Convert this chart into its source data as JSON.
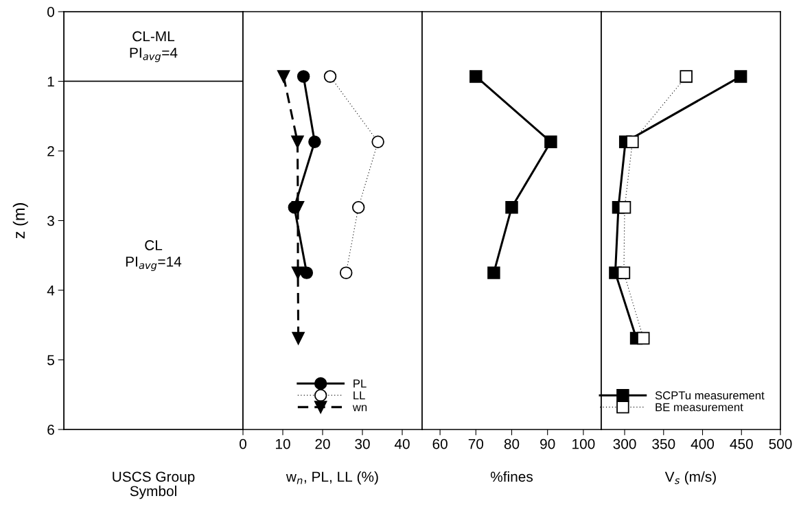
{
  "chart_data": [
    {
      "type": "bar",
      "stacked": true,
      "categories": [
        null
      ],
      "xlabel": "USCS Group\nSymbol",
      "ylabel": "z (m)",
      "ylim": [
        6,
        0
      ],
      "yticks": [
        0,
        1,
        2,
        3,
        4,
        5,
        6
      ],
      "tick_labels": "y",
      "series": [
        {
          "name": "CL-ML\nPI$_{avg}$=4",
          "color": "#ffffff",
          "values": [
            1
          ]
        },
        {
          "name": "CL\nPI$_{avg}$=14",
          "color": "#ffffff",
          "values": [
            5
          ]
        }
      ]
    },
    {
      "type": "line",
      "orientation": "horizontal",
      "xlabel": "w$_{n}$, PL, LL (%)",
      "xlim": [
        0,
        45
      ],
      "xticks": [
        0,
        10,
        20,
        30,
        40
      ],
      "ylim": [
        6,
        0
      ],
      "tick_labels": "x",
      "legend": "bottom",
      "series": [
        {
          "name": "PL",
          "color": "#000000",
          "marker": "circle",
          "line_style": "solid",
          "x": [
            0.93,
            1.87,
            2.81,
            3.75
          ],
          "values": [
            15.2,
            18,
            12.9,
            16
          ]
        },
        {
          "name": "LL",
          "color": "#ffffff",
          "marker": "circle",
          "line_style": "dotted",
          "x": [
            0.93,
            1.87,
            2.81,
            3.75
          ],
          "values": [
            21.9,
            33.9,
            29,
            25.9
          ]
        },
        {
          "name": "wn",
          "color": "#000000",
          "marker": "triangle",
          "line_style": "dashed",
          "x": [
            0.93,
            1.87,
            2.81,
            3.75,
            4.69
          ],
          "values": [
            10.2,
            13.7,
            13.8,
            13.8,
            13.9
          ]
        }
      ]
    },
    {
      "type": "line",
      "orientation": "horizontal",
      "xlabel": "%fines",
      "xlim": [
        55,
        105
      ],
      "xticks": [
        60,
        70,
        80,
        90,
        100
      ],
      "ylim": [
        6,
        0
      ],
      "tick_labels": "x",
      "series": [
        {
          "color": "#000000",
          "marker": "square",
          "line_style": "solid",
          "x": [
            0.93,
            1.87,
            2.81,
            3.75
          ],
          "values": [
            70,
            90.9,
            80,
            75
          ]
        }
      ]
    },
    {
      "type": "line",
      "orientation": "horizontal",
      "xlabel": "V$_{s}$ (m/s)",
      "xlim": [
        270,
        500
      ],
      "xticks": [
        300,
        350,
        400,
        450,
        500
      ],
      "ylim": [
        6,
        0
      ],
      "tick_labels": "x",
      "legend": "bottom right",
      "series": [
        {
          "name": "SCPTu measurement",
          "color": "#000000",
          "marker": "square",
          "line_style": "solid",
          "x": [
            0.93,
            1.87,
            2.81,
            3.75,
            4.69
          ],
          "values": [
            449,
            301,
            292,
            288,
            315
          ]
        },
        {
          "name": "BE measurement",
          "color": "#ffffff",
          "marker": "square",
          "line_style": "dotted",
          "x": [
            0.93,
            1.87,
            2.81,
            3.75,
            4.69
          ],
          "values": [
            379,
            310,
            300,
            299,
            324
          ]
        }
      ]
    }
  ]
}
